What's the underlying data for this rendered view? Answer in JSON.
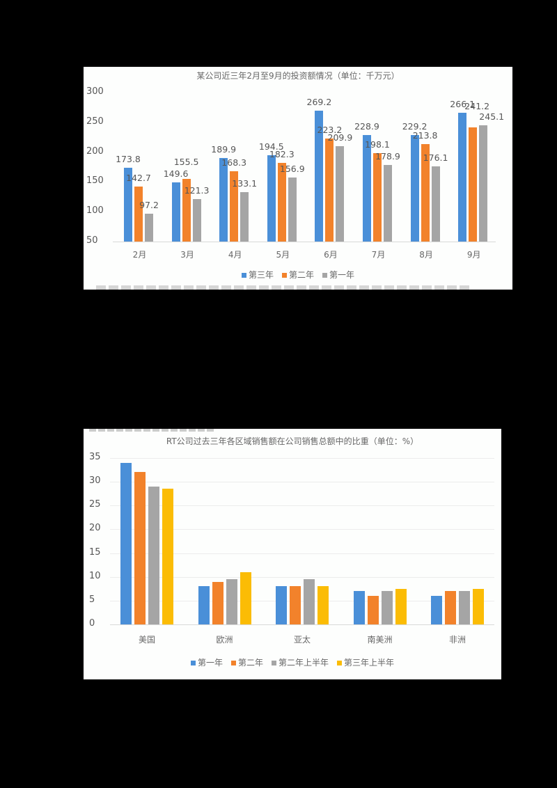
{
  "chart_data": [
    {
      "type": "bar",
      "title": "某公司近三年2月至9月的投资额情况（单位：千万元）",
      "categories": [
        "2月",
        "3月",
        "4月",
        "5月",
        "6月",
        "7月",
        "8月",
        "9月"
      ],
      "series": [
        {
          "name": "第三年",
          "color": "#4a8fd8",
          "values": [
            173.8,
            149.6,
            189.9,
            194.5,
            269.2,
            228.9,
            229.2,
            266.1
          ]
        },
        {
          "name": "第二年",
          "color": "#f2822b",
          "values": [
            142.7,
            155.5,
            168.3,
            182.3,
            223.2,
            198.1,
            213.8,
            241.2
          ]
        },
        {
          "name": "第一年",
          "color": "#a5a5a5",
          "values": [
            97.2,
            121.3,
            133.1,
            156.9,
            209.9,
            178.9,
            176.1,
            245.1
          ]
        }
      ],
      "yticks": [
        50,
        100,
        150,
        200,
        250,
        300
      ],
      "ylim": [
        50,
        300
      ],
      "xlabel": "",
      "ylabel": "",
      "grid": false,
      "data_labels": true,
      "legend_position": "bottom"
    },
    {
      "type": "bar",
      "title": "RT公司过去三年各区域销售额在公司销售总额中的比重（单位：%）",
      "categories": [
        "美国",
        "欧洲",
        "亚太",
        "南美洲",
        "非洲"
      ],
      "series": [
        {
          "name": "第一年",
          "color": "#4a8fd8",
          "values": [
            34,
            8,
            8,
            7,
            6
          ]
        },
        {
          "name": "第二年",
          "color": "#f2822b",
          "values": [
            32,
            9,
            8,
            6,
            7
          ]
        },
        {
          "name": "第二年上半年",
          "color": "#a5a5a5",
          "values": [
            29,
            9.5,
            9.5,
            7,
            7
          ]
        },
        {
          "name": "第三年上半年",
          "color": "#fbbc05",
          "values": [
            28.5,
            11,
            8,
            7.5,
            7.5
          ]
        }
      ],
      "yticks": [
        0,
        5,
        10,
        15,
        20,
        25,
        30,
        35
      ],
      "ylim": [
        0,
        35
      ],
      "xlabel": "",
      "ylabel": "",
      "grid": true,
      "data_labels": false,
      "legend_position": "bottom"
    }
  ]
}
